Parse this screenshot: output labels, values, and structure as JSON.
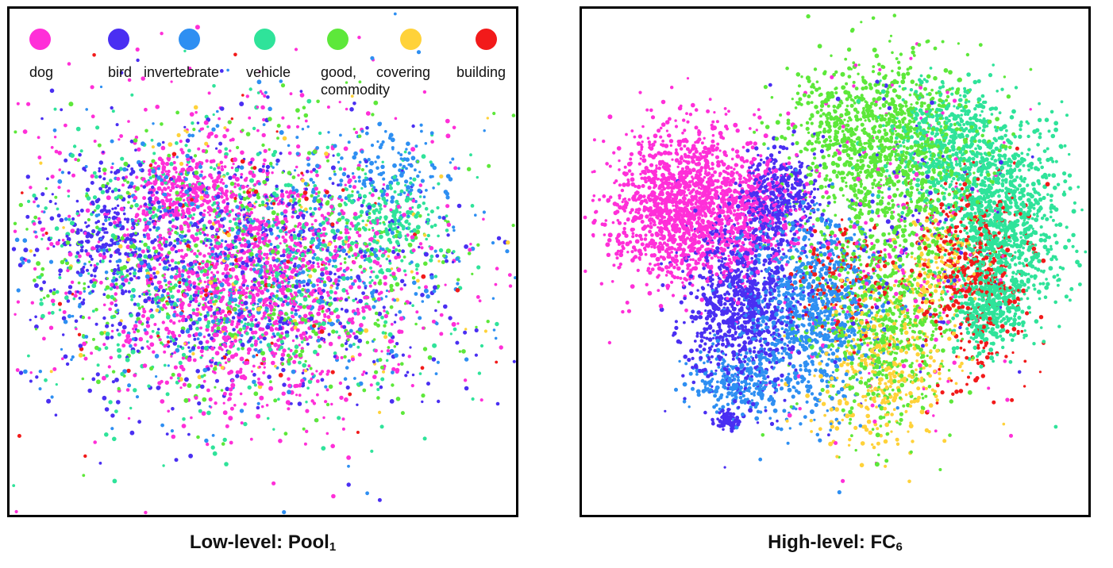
{
  "chart_data": [
    {
      "type": "scatter",
      "title": "Low-level: Pool",
      "title_subscript": "1",
      "legend": {
        "placement": "top",
        "entries": [
          {
            "label": "dog",
            "color": "#ff2fd8"
          },
          {
            "label": "bird",
            "color": "#4a2ff2"
          },
          {
            "label": "invertebrate",
            "color": "#2e8ff2"
          },
          {
            "label": "vehicle",
            "color": "#2fe39a"
          },
          {
            "label": "good, commodity",
            "color": "#5de83a"
          },
          {
            "label": "covering",
            "color": "#ffd23a"
          },
          {
            "label": "building",
            "color": "#f21a1a"
          }
        ]
      },
      "grid": false,
      "axes_visible": false,
      "series": [
        {
          "name": "dog",
          "color": "#ff2fd8"
        },
        {
          "name": "bird",
          "color": "#4a2ff2"
        },
        {
          "name": "invertebrate",
          "color": "#2e8ff2"
        },
        {
          "name": "vehicle",
          "color": "#2fe39a"
        },
        {
          "name": "good, commodity",
          "color": "#5de83a"
        },
        {
          "name": "covering",
          "color": "#ffd23a"
        },
        {
          "name": "building",
          "color": "#f21a1a"
        }
      ]
    },
    {
      "type": "scatter",
      "title": "High-level: FC",
      "title_subscript": "6",
      "grid": false,
      "axes_visible": false,
      "series": [
        {
          "name": "dog",
          "color": "#ff2fd8"
        },
        {
          "name": "bird",
          "color": "#4a2ff2"
        },
        {
          "name": "invertebrate",
          "color": "#2e8ff2"
        },
        {
          "name": "vehicle",
          "color": "#2fe39a"
        },
        {
          "name": "good, commodity",
          "color": "#5de83a"
        },
        {
          "name": "covering",
          "color": "#ffd23a"
        },
        {
          "name": "building",
          "color": "#f21a1a"
        }
      ]
    }
  ]
}
